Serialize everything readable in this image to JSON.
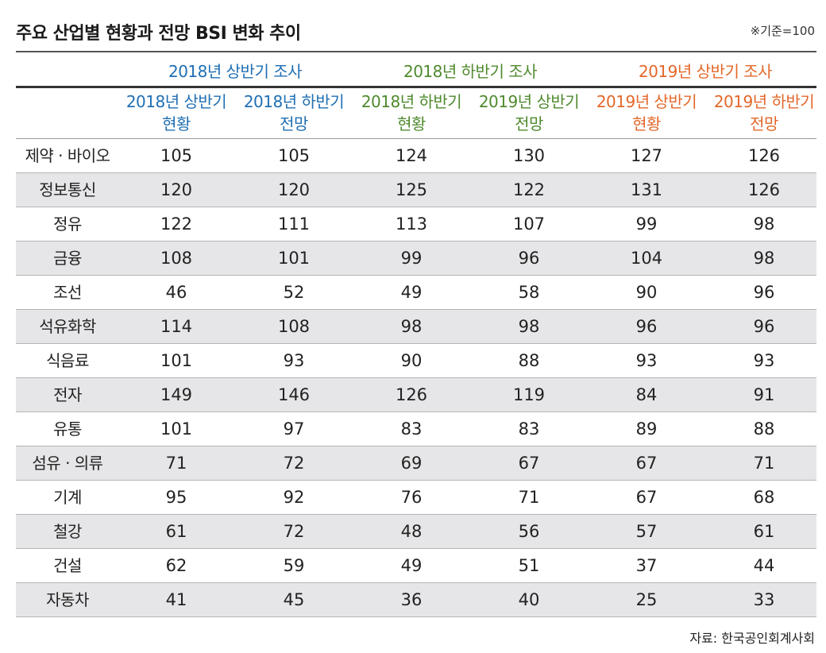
{
  "title": "주요 산업별 현황과 전망 BSI 변화 추이",
  "basis": "※기준=100",
  "source": "자료: 한국공인회계사회",
  "colors": {
    "group_2018_h1": "#1f6fb3",
    "group_2018_h2": "#4f8a2e",
    "group_2019_h1": "#e3682a",
    "row_shade": "#e6e6e8"
  },
  "groups": [
    {
      "label": "2018년 상반기 조사",
      "color": "#1f6fb3"
    },
    {
      "label": "2018년 하반기 조사",
      "color": "#4f8a2e"
    },
    {
      "label": "2019년 상반기 조사",
      "color": "#e3682a"
    }
  ],
  "subheaders": [
    {
      "line1": "2018년 상반기",
      "line2": "현황",
      "color": "#1f6fb3"
    },
    {
      "line1": "2018년 하반기",
      "line2": "전망",
      "color": "#1f6fb3"
    },
    {
      "line1": "2018년 하반기",
      "line2": "현황",
      "color": "#4f8a2e"
    },
    {
      "line1": "2019년 상반기",
      "line2": "전망",
      "color": "#4f8a2e"
    },
    {
      "line1": "2019년 상반기",
      "line2": "현황",
      "color": "#e3682a"
    },
    {
      "line1": "2019년 하반기",
      "line2": "전망",
      "color": "#e3682a"
    }
  ],
  "chart_data": {
    "type": "table",
    "title": "주요 산업별 현황과 전망 BSI 변화 추이",
    "columns": [
      "2018년 상반기 현황",
      "2018년 하반기 전망",
      "2018년 하반기 현황",
      "2019년 상반기 전망",
      "2019년 상반기 현황",
      "2019년 하반기 전망"
    ],
    "rows": [
      {
        "industry": "제약 · 바이오",
        "values": [
          105,
          105,
          124,
          130,
          127,
          126
        ]
      },
      {
        "industry": "정보통신",
        "values": [
          120,
          120,
          125,
          122,
          131,
          126
        ]
      },
      {
        "industry": "정유",
        "values": [
          122,
          111,
          113,
          107,
          99,
          98
        ]
      },
      {
        "industry": "금융",
        "values": [
          108,
          101,
          99,
          96,
          104,
          98
        ]
      },
      {
        "industry": "조선",
        "values": [
          46,
          52,
          49,
          58,
          90,
          96
        ]
      },
      {
        "industry": "석유화학",
        "values": [
          114,
          108,
          98,
          98,
          96,
          96
        ]
      },
      {
        "industry": "식음료",
        "values": [
          101,
          93,
          90,
          88,
          93,
          93
        ]
      },
      {
        "industry": "전자",
        "values": [
          149,
          146,
          126,
          119,
          84,
          91
        ]
      },
      {
        "industry": "유통",
        "values": [
          101,
          97,
          83,
          83,
          89,
          88
        ]
      },
      {
        "industry": "섬유 · 의류",
        "values": [
          71,
          72,
          69,
          67,
          67,
          71
        ]
      },
      {
        "industry": "기계",
        "values": [
          95,
          92,
          76,
          71,
          67,
          68
        ]
      },
      {
        "industry": "철강",
        "values": [
          61,
          72,
          48,
          56,
          57,
          61
        ]
      },
      {
        "industry": "건설",
        "values": [
          62,
          59,
          49,
          51,
          37,
          44
        ]
      },
      {
        "industry": "자동차",
        "values": [
          41,
          45,
          36,
          40,
          25,
          33
        ]
      }
    ]
  }
}
